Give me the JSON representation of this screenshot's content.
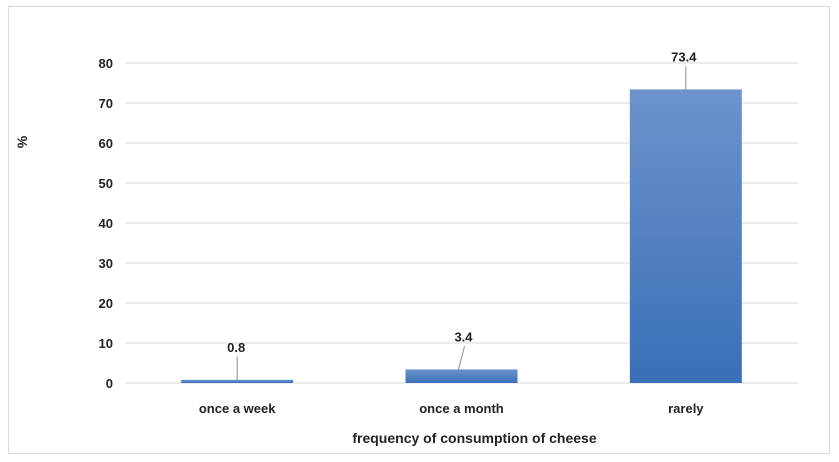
{
  "chart_data": {
    "type": "bar",
    "categories": [
      "once a week",
      "once a month",
      "rarely"
    ],
    "values": [
      0.8,
      3.4,
      73.4
    ],
    "data_labels": [
      "0.8",
      "3.4",
      "73.4"
    ],
    "xlabel": "frequency of consumption of cheese",
    "ylabel": "%",
    "ylim": [
      0,
      80
    ],
    "yticks": [
      0,
      10,
      20,
      30,
      40,
      50,
      60,
      70,
      80
    ],
    "grid": true,
    "legend": "none",
    "colors": {
      "bar_top": "#6c93cc",
      "bar_bottom": "#3a6fb7",
      "grid": "#d9d9d9",
      "leader": "#8c8c8c"
    }
  }
}
